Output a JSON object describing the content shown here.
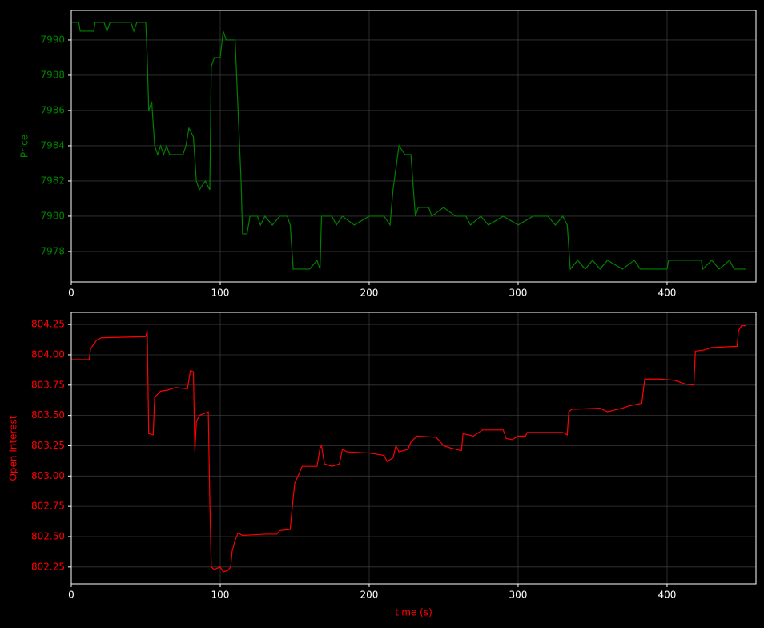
{
  "chart_data": [
    {
      "type": "line",
      "ylabel": "Price",
      "color": "#008000",
      "grid": true,
      "x": [
        0,
        5,
        6,
        15,
        16,
        22,
        24,
        26,
        40,
        42,
        44,
        50,
        51,
        52,
        54,
        56,
        58,
        60,
        62,
        64,
        66,
        75,
        77,
        79,
        82,
        84,
        86,
        90,
        93,
        94,
        96,
        100,
        102,
        104,
        110,
        112,
        114,
        115,
        118,
        120,
        125,
        127,
        130,
        135,
        140,
        145,
        147,
        149,
        160,
        165,
        167,
        168,
        175,
        178,
        182,
        190,
        200,
        210,
        214,
        216,
        220,
        224,
        228,
        231,
        233,
        240,
        242,
        250,
        258,
        265,
        268,
        275,
        280,
        290,
        300,
        310,
        320,
        325,
        330,
        333,
        335,
        340,
        345,
        350,
        355,
        360,
        370,
        378,
        382,
        400,
        401,
        423,
        424,
        430,
        435,
        442,
        445,
        453
      ],
      "values": [
        7991,
        7991,
        7990.5,
        7990.5,
        7991,
        7991,
        7990.5,
        7991,
        7991,
        7990.5,
        7991,
        7991,
        7989,
        7986,
        7986.5,
        7984,
        7983.5,
        7984,
        7983.5,
        7984,
        7983.5,
        7983.5,
        7984,
        7985,
        7984.5,
        7982,
        7981.5,
        7982,
        7981.5,
        7988.5,
        7989,
        7989,
        7990.5,
        7990,
        7990,
        7986,
        7982,
        7979,
        7979,
        7980,
        7980,
        7979.5,
        7980,
        7979.5,
        7980,
        7980,
        7979.5,
        7977,
        7977,
        7977.5,
        7977,
        7980,
        7980,
        7979.5,
        7980,
        7979.5,
        7980,
        7980,
        7979.5,
        7981.5,
        7984,
        7983.5,
        7983.5,
        7980,
        7980.5,
        7980.5,
        7980,
        7980.5,
        7980,
        7980,
        7979.5,
        7980,
        7979.5,
        7980,
        7979.5,
        7980,
        7980,
        7979.5,
        7980,
        7979.5,
        7977,
        7977.5,
        7977,
        7977.5,
        7977,
        7977.5,
        7977,
        7977.5,
        7977,
        7977,
        7977.5,
        7977.5,
        7977,
        7977.5,
        7977,
        7977.5,
        7977,
        7977
      ],
      "xlim": [
        0,
        459.7
      ],
      "xticks": [
        0,
        100,
        200,
        300,
        400
      ],
      "ylim": [
        7976.27,
        7991.68
      ],
      "yticks": [
        7978,
        7980,
        7982,
        7984,
        7986,
        7988,
        7990
      ]
    },
    {
      "type": "line",
      "ylabel": "Open Interest",
      "xlabel": "time (s)",
      "color": "#ff0000",
      "grid": true,
      "x": [
        0,
        12,
        13,
        17,
        20,
        50,
        51,
        52,
        55,
        56,
        60,
        65,
        70,
        78,
        80,
        82,
        83,
        84,
        86,
        92,
        93,
        94,
        96,
        100,
        102,
        105,
        107,
        108,
        110,
        112,
        115,
        130,
        138,
        140,
        147,
        148,
        150,
        153,
        155,
        165,
        167,
        168,
        170,
        175,
        180,
        182,
        185,
        200,
        210,
        212,
        216,
        218,
        220,
        226,
        228,
        232,
        245,
        250,
        255,
        262,
        263,
        270,
        276,
        290,
        292,
        296,
        300,
        305,
        306,
        330,
        333,
        334,
        336,
        355,
        360,
        370,
        375,
        383,
        385,
        395,
        405,
        412,
        418,
        419,
        425,
        430,
        447,
        448,
        450,
        453
      ],
      "values": [
        803.96,
        803.96,
        804.05,
        804.12,
        804.14,
        804.15,
        804.2,
        803.35,
        803.34,
        803.65,
        803.7,
        803.71,
        803.73,
        803.72,
        803.87,
        803.86,
        803.2,
        803.45,
        803.5,
        803.53,
        802.8,
        802.25,
        802.23,
        802.25,
        802.21,
        802.22,
        802.25,
        802.38,
        802.47,
        802.53,
        802.51,
        802.52,
        802.52,
        802.55,
        802.56,
        802.7,
        802.94,
        803.02,
        803.08,
        803.08,
        803.23,
        803.25,
        803.1,
        803.08,
        803.1,
        803.22,
        803.2,
        803.19,
        803.17,
        803.12,
        803.15,
        803.25,
        803.2,
        803.22,
        803.28,
        803.33,
        803.32,
        803.25,
        803.23,
        803.21,
        803.35,
        803.33,
        803.38,
        803.38,
        803.31,
        803.3,
        803.33,
        803.33,
        803.36,
        803.36,
        803.34,
        803.53,
        803.55,
        803.56,
        803.53,
        803.56,
        803.58,
        803.6,
        803.8,
        803.8,
        803.79,
        803.76,
        803.75,
        804.03,
        804.04,
        804.06,
        804.07,
        804.2,
        804.24,
        804.24
      ],
      "xlim": [
        0,
        459.7
      ],
      "xticks": [
        0,
        100,
        200,
        300,
        400
      ],
      "ylim": [
        802.11,
        804.35
      ],
      "yticks": [
        {
          "value": 802.25,
          "label": "802.25"
        },
        {
          "value": 802.5,
          "label": "802.50"
        },
        {
          "value": 802.75,
          "label": "802.75"
        },
        {
          "value": 803,
          "label": "803.00"
        },
        {
          "value": 803.25,
          "label": "803.25"
        },
        {
          "value": 803.5,
          "label": "803.50"
        },
        {
          "value": 803.75,
          "label": "803.75"
        },
        {
          "value": 804,
          "label": "804.00"
        },
        {
          "value": 804.25,
          "label": "804.25"
        }
      ]
    }
  ]
}
